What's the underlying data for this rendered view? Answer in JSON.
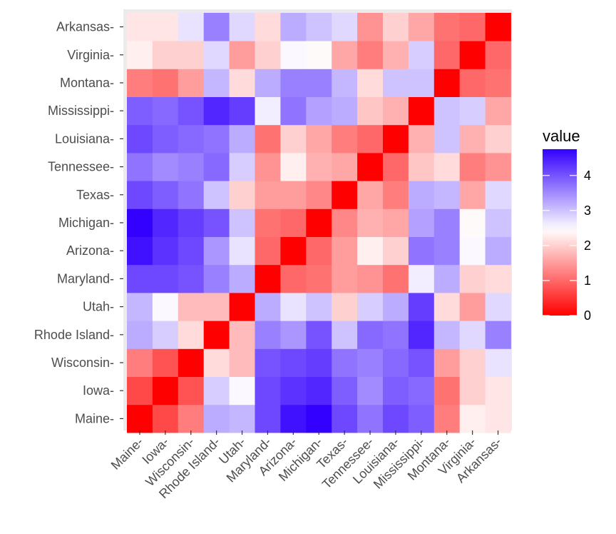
{
  "chart_data": {
    "type": "heatmap",
    "title": "",
    "xlabel": "",
    "ylabel": "",
    "states": [
      "Maine",
      "Iowa",
      "Wisconsin",
      "Rhode Island",
      "Utah",
      "Maryland",
      "Arizona",
      "Michigan",
      "Texas",
      "Tennessee",
      "Louisiana",
      "Mississippi",
      "Montana",
      "Virginia",
      "Arkansas"
    ],
    "x_tick_labels": [
      "Maine-",
      "Iowa-",
      "Wisconsin-",
      "Rhode Island-",
      "Utah-",
      "Maryland-",
      "Arizona-",
      "Michigan-",
      "Texas-",
      "Tennessee-",
      "Louisiana-",
      "Mississippi-",
      "Montana-",
      "Virginia-",
      "Arkansas-"
    ],
    "y_tick_labels": [
      "Maine-",
      "Iowa-",
      "Wisconsin-",
      "Rhode Island-",
      "Utah-",
      "Maryland-",
      "Arizona-",
      "Michigan-",
      "Texas-",
      "Tennessee-",
      "Louisiana-",
      "Mississippi-",
      "Montana-",
      "Virginia-",
      "Arkansas-"
    ],
    "values": [
      [
        0.0,
        0.7,
        1.2,
        3.2,
        3.1,
        4.1,
        4.6,
        4.8,
        4.1,
        3.7,
        4.1,
        3.9,
        1.2,
        2.3,
        2.2
      ],
      [
        0.7,
        0.0,
        0.8,
        2.9,
        2.5,
        4.1,
        4.3,
        4.4,
        3.9,
        3.5,
        3.9,
        3.8,
        1.1,
        2.0,
        2.2
      ],
      [
        1.2,
        0.8,
        0.0,
        2.1,
        1.8,
        4.0,
        4.1,
        4.2,
        3.7,
        3.6,
        3.8,
        4.0,
        1.5,
        2.0,
        2.7
      ],
      [
        3.2,
        2.9,
        2.1,
        0.0,
        1.8,
        3.6,
        3.4,
        4.0,
        3.0,
        3.8,
        3.7,
        4.4,
        3.1,
        2.8,
        3.6
      ],
      [
        3.1,
        2.5,
        1.8,
        1.8,
        0.0,
        3.2,
        2.7,
        3.0,
        2.0,
        2.9,
        3.2,
        4.2,
        2.1,
        1.5,
        2.8
      ],
      [
        4.1,
        4.1,
        4.0,
        3.6,
        3.2,
        0.0,
        1.0,
        1.1,
        1.5,
        1.4,
        1.1,
        2.6,
        3.2,
        2.0,
        2.1
      ],
      [
        4.6,
        4.3,
        4.1,
        3.4,
        2.7,
        1.0,
        0.0,
        1.0,
        1.5,
        2.3,
        2.0,
        3.7,
        3.6,
        2.5,
        3.2
      ],
      [
        4.8,
        4.4,
        4.2,
        4.0,
        3.0,
        1.1,
        1.0,
        0.0,
        1.3,
        1.7,
        1.6,
        3.3,
        3.6,
        2.4,
        3.0
      ],
      [
        4.1,
        3.9,
        3.7,
        3.0,
        2.0,
        1.5,
        1.5,
        1.3,
        0.0,
        1.6,
        1.2,
        3.2,
        3.1,
        1.6,
        2.8
      ],
      [
        3.7,
        3.5,
        3.6,
        3.8,
        2.9,
        1.4,
        2.3,
        1.7,
        1.6,
        0.0,
        1.0,
        1.9,
        2.1,
        1.2,
        1.4
      ],
      [
        4.1,
        3.9,
        3.8,
        3.7,
        3.2,
        1.1,
        2.0,
        1.6,
        1.2,
        1.0,
        0.0,
        1.7,
        3.0,
        1.7,
        2.0
      ],
      [
        3.9,
        3.8,
        4.0,
        4.4,
        4.2,
        2.6,
        3.7,
        3.3,
        3.2,
        1.9,
        1.7,
        0.0,
        3.0,
        2.9,
        1.6
      ],
      [
        1.2,
        1.1,
        1.5,
        3.1,
        2.1,
        3.2,
        3.6,
        3.6,
        3.1,
        2.1,
        3.0,
        3.0,
        0.0,
        1.0,
        1.1
      ],
      [
        2.3,
        2.0,
        2.0,
        2.8,
        1.5,
        2.0,
        2.5,
        2.4,
        1.6,
        1.2,
        1.7,
        2.9,
        1.0,
        0.0,
        1.0
      ],
      [
        2.2,
        2.2,
        2.7,
        3.6,
        2.8,
        2.1,
        3.2,
        3.0,
        2.8,
        1.4,
        2.0,
        1.6,
        1.1,
        1.0,
        0.0
      ]
    ],
    "color_scale": {
      "low": "#ff0000",
      "mid": "#ffffff",
      "high": "#3300ff",
      "min": 0,
      "midpoint": 2.45,
      "max": 4.75
    },
    "legend": {
      "title": "value",
      "breaks": [
        4,
        3,
        2,
        1,
        0
      ],
      "labels": [
        "4",
        "3",
        "2",
        "1",
        "0"
      ],
      "position": "right"
    }
  },
  "colors": {
    "panel_border": "#ebebeb",
    "tick_label": "#4d4d4d",
    "tick_mark": "#333333"
  }
}
